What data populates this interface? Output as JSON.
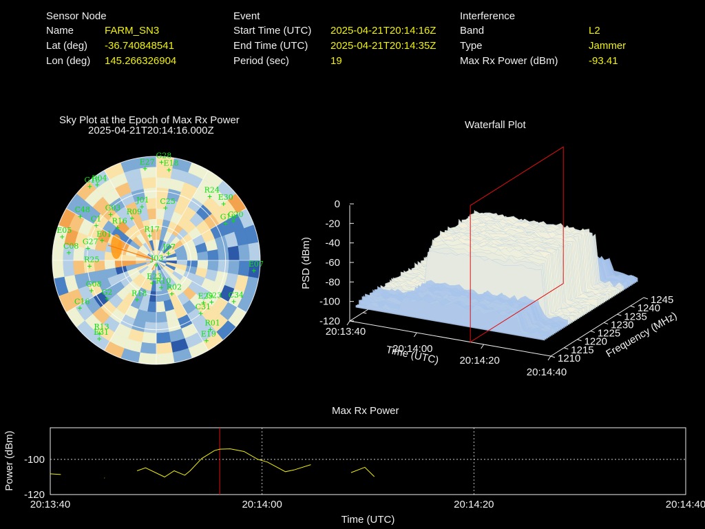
{
  "header": {
    "sensor_node": {
      "heading": "Sensor Node",
      "rows": [
        {
          "label": "Name",
          "value": "FARM_SN3"
        },
        {
          "label": "Lat (deg)",
          "value": "-36.740848541"
        },
        {
          "label": "Lon (deg)",
          "value": "145.266326904"
        }
      ]
    },
    "event": {
      "heading": "Event",
      "rows": [
        {
          "label": "Start Time (UTC)",
          "value": "2025-04-21T20:14:16Z"
        },
        {
          "label": "End Time (UTC)",
          "value": "2025-04-21T20:14:35Z"
        },
        {
          "label": "Period (sec)",
          "value": "19"
        }
      ]
    },
    "interference": {
      "heading": "Interference",
      "rows": [
        {
          "label": "Band",
          "value": "L2"
        },
        {
          "label": "Type",
          "value": "Jammer"
        },
        {
          "label": "Max Rx Power (dBm)",
          "value": "-93.41"
        }
      ]
    }
  },
  "colors": {
    "background": "#000000",
    "text": "#f0f0f0",
    "value_text": "#f2f205",
    "satellite_marker": "#10e010",
    "power_line": "#f2f205",
    "event_marker": "#e01010"
  },
  "chart_data": [
    {
      "type": "scatter",
      "subtype": "polar-sky-plot",
      "title": "Sky Plot at the Epoch of Max Rx Power",
      "subtitle": "2025-04-21T20:14:16.000Z",
      "background": "polar heatmap of received power, blue-to-orange colormap",
      "satellites": [
        {
          "id": "G28",
          "az": 3,
          "el": 5
        },
        {
          "id": "E27",
          "az": 353,
          "el": 10
        },
        {
          "id": "E18",
          "az": 8,
          "el": 11
        },
        {
          "id": "G16",
          "az": 318,
          "el": 4
        },
        {
          "id": "R04",
          "az": 322,
          "el": 7
        },
        {
          "id": "C48",
          "az": 300,
          "el": 14
        },
        {
          "id": "G03",
          "az": 315,
          "el": 34
        },
        {
          "id": "R09",
          "az": 330,
          "el": 48
        },
        {
          "id": "J01",
          "az": 345,
          "el": 42
        },
        {
          "id": "C25",
          "az": 10,
          "el": 44
        },
        {
          "id": "R24",
          "az": 40,
          "el": 18
        },
        {
          "id": "E30",
          "az": 50,
          "el": 14
        },
        {
          "id": "G18",
          "az": 62,
          "el": 22
        },
        {
          "id": "C20",
          "az": 63,
          "el": 15
        },
        {
          "id": "E05",
          "az": 284,
          "el": 6
        },
        {
          "id": "C08",
          "az": 275,
          "el": 14
        },
        {
          "id": "G27",
          "az": 280,
          "el": 30
        },
        {
          "id": "R16",
          "az": 310,
          "el": 46
        },
        {
          "id": "J07",
          "az": 60,
          "el": 78
        },
        {
          "id": "R17",
          "az": 345,
          "el": 68
        },
        {
          "id": "E07",
          "az": 96,
          "el": 5
        },
        {
          "id": "R25",
          "az": 265,
          "el": 32
        },
        {
          "id": "J03",
          "az": 180,
          "el": 86
        },
        {
          "id": "E23",
          "az": 190,
          "el": 70
        },
        {
          "id": "R10",
          "az": 170,
          "el": 66
        },
        {
          "id": "R02",
          "az": 155,
          "el": 58
        },
        {
          "id": "G23",
          "az": 127,
          "el": 30
        },
        {
          "id": "E29",
          "az": 132,
          "el": 35
        },
        {
          "id": "C31",
          "az": 140,
          "el": 30
        },
        {
          "id": "C34",
          "az": 118,
          "el": 14
        },
        {
          "id": "G08",
          "az": 245,
          "el": 28
        },
        {
          "id": "G2",
          "az": 232,
          "el": 36
        },
        {
          "id": "R18",
          "az": 206,
          "el": 52
        },
        {
          "id": "C16",
          "az": 238,
          "el": 12
        },
        {
          "id": "R13",
          "az": 218,
          "el": 10
        },
        {
          "id": "E31",
          "az": 216,
          "el": 6
        },
        {
          "id": "R01",
          "az": 142,
          "el": 14
        },
        {
          "id": "E19",
          "az": 148,
          "el": 8
        },
        {
          "id": "C1",
          "az": 300,
          "el": 30
        },
        {
          "id": "E01",
          "az": 290,
          "el": 40
        }
      ]
    },
    {
      "type": "area",
      "subtype": "3d-waterfall-surface",
      "title": "Waterfall Plot",
      "xlabel": "Time (UTC)",
      "ylabel": "Frequency (MHz)",
      "zlabel": "PSD (dBm)",
      "x_ticks": [
        "20:13:40",
        "20:14:00",
        "20:14:20",
        "20:14:40"
      ],
      "y_ticks": [
        "1210",
        "1215",
        "1220",
        "1225",
        "1230",
        "1235",
        "1240",
        "1245"
      ],
      "z_ticks": [
        "0",
        "-20",
        "-40",
        "-60",
        "-80",
        "-100",
        "-120"
      ],
      "xlim": [
        "20:13:40",
        "20:14:40"
      ],
      "ylim": [
        1210,
        1245
      ],
      "zlim": [
        -120,
        0
      ],
      "event_plane_time": "20:14:16",
      "surface": {
        "noise_floor_dbm": -100,
        "signal_band_mhz": [
          1219,
          1240
        ],
        "signal_peak_dbm": -40,
        "signal_time_range": [
          "20:13:55",
          "20:14:30"
        ]
      }
    },
    {
      "type": "line",
      "title": "Max Rx Power",
      "xlabel": "Time (UTC)",
      "ylabel": "Power (dBm)",
      "x_ticks": [
        "20:13:40",
        "20:14:00",
        "20:14:20",
        "20:14:40"
      ],
      "y_ticks": [
        "-100",
        "-120"
      ],
      "xlim": [
        0,
        60
      ],
      "ylim": [
        -120,
        -82
      ],
      "grid": true,
      "event_marker_t": 16,
      "series": [
        {
          "t": [
            0.0,
            1.0
          ],
          "values": [
            -108.2,
            -108.6
          ]
        },
        {
          "t": [
            5.1,
            5.15
          ],
          "values": [
            -110.5,
            -110.6
          ]
        },
        {
          "t": [
            8.2,
            9.0,
            10.8,
            11.7,
            12.7,
            13.2,
            14.3,
            15.5,
            16.0,
            17.0,
            18.3,
            19.6,
            20.5,
            22.2,
            23.0,
            24.6
          ],
          "values": [
            -106.5,
            -104.8,
            -110.0,
            -106.5,
            -109.0,
            -106.5,
            -99.5,
            -95.0,
            -94.2,
            -94.0,
            -95.5,
            -100.0,
            -101.5,
            -107.0,
            -106.0,
            -103.0
          ]
        },
        {
          "t": [
            28.4,
            29.7,
            30.6
          ],
          "values": [
            -107.5,
            -104.5,
            -109.8
          ]
        }
      ]
    }
  ]
}
